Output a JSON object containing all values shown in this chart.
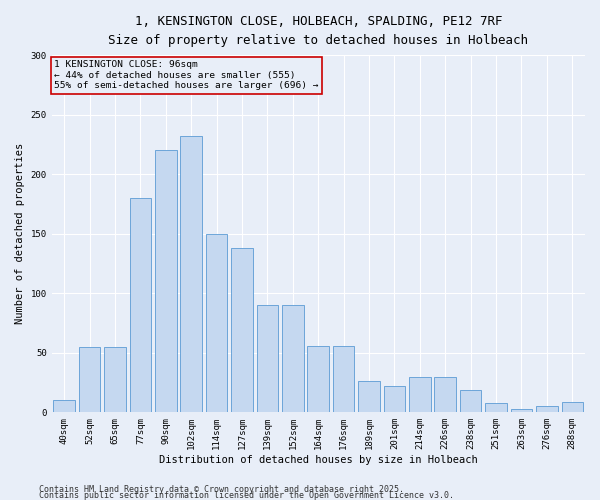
{
  "title_line1": "1, KENSINGTON CLOSE, HOLBEACH, SPALDING, PE12 7RF",
  "title_line2": "Size of property relative to detached houses in Holbeach",
  "xlabel": "Distribution of detached houses by size in Holbeach",
  "ylabel": "Number of detached properties",
  "categories": [
    "40sqm",
    "52sqm",
    "65sqm",
    "77sqm",
    "90sqm",
    "102sqm",
    "114sqm",
    "127sqm",
    "139sqm",
    "152sqm",
    "164sqm",
    "176sqm",
    "189sqm",
    "201sqm",
    "214sqm",
    "226sqm",
    "238sqm",
    "251sqm",
    "263sqm",
    "276sqm",
    "288sqm"
  ],
  "bar_values": [
    10,
    55,
    55,
    180,
    220,
    232,
    150,
    138,
    90,
    90,
    56,
    56,
    26,
    22,
    30,
    30,
    19,
    8,
    3,
    5,
    9
  ],
  "bar_color": "#c5d8f0",
  "bar_edge_color": "#5b9bd5",
  "annotation_text_line1": "1 KENSINGTON CLOSE: 96sqm",
  "annotation_text_line2": "← 44% of detached houses are smaller (555)",
  "annotation_text_line3": "55% of semi-detached houses are larger (696) →",
  "annotation_box_edgecolor": "#cc0000",
  "ylim": [
    0,
    300
  ],
  "yticks": [
    0,
    50,
    100,
    150,
    200,
    250,
    300
  ],
  "background_color": "#e8eef8",
  "grid_color": "#ffffff",
  "title_fontsize": 9,
  "subtitle_fontsize": 8.5,
  "axis_label_fontsize": 7.5,
  "tick_fontsize": 6.5,
  "annotation_fontsize": 6.8,
  "footer_fontsize": 6.0,
  "footer_line1": "Contains HM Land Registry data © Crown copyright and database right 2025.",
  "footer_line2": "Contains public sector information licensed under the Open Government Licence v3.0."
}
